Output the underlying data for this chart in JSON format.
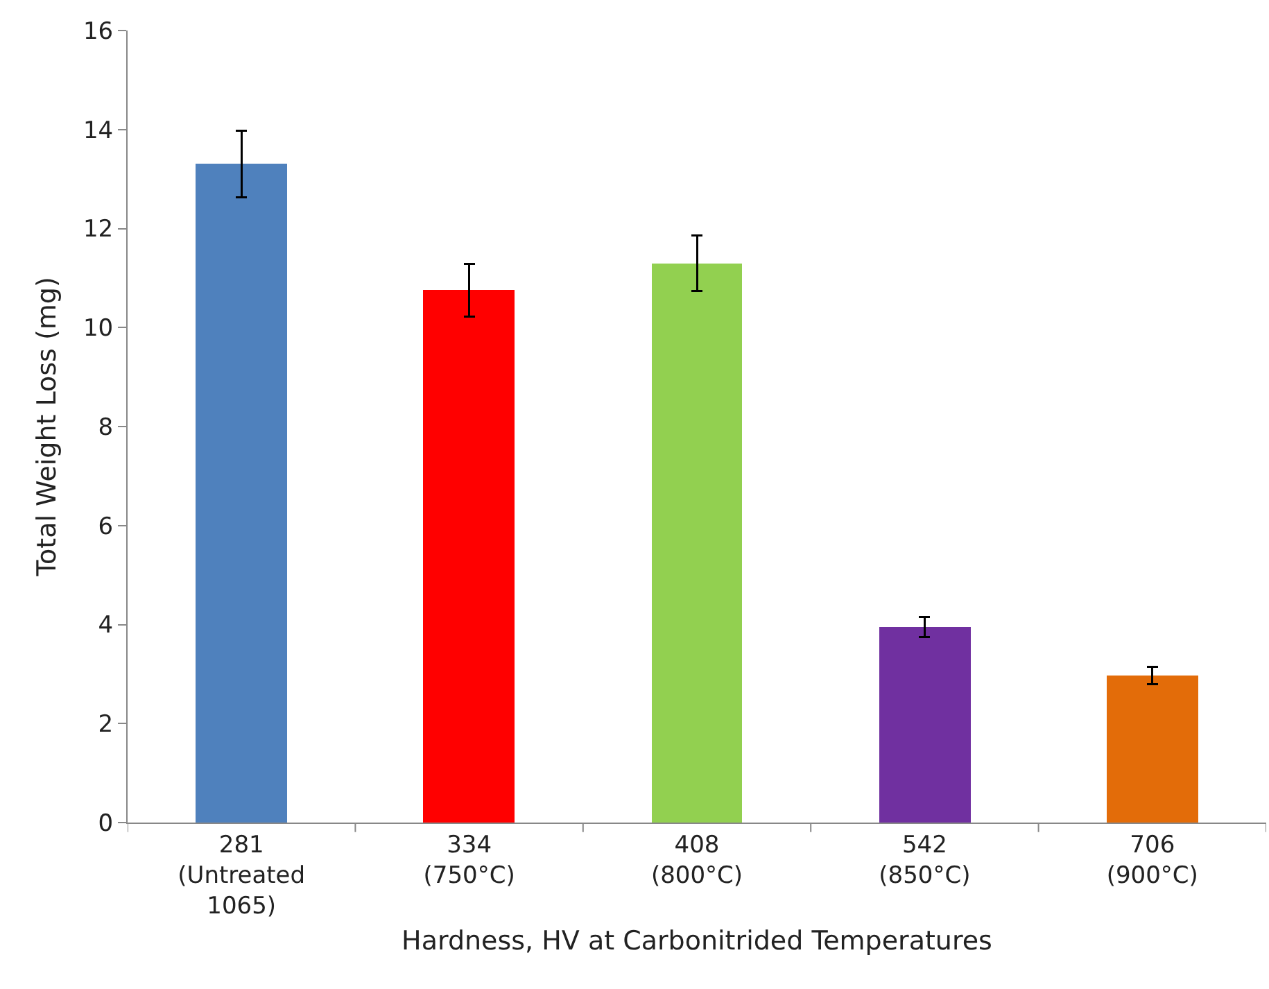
{
  "chart_data": {
    "type": "bar",
    "xlabel": "Hardness, HV at Carbonitrided Temperatures",
    "ylabel": "Total Weight Loss (mg)",
    "categories": [
      "281\n(Untreated\n1065)",
      "334\n(750°C)",
      "408\n(800°C)",
      "542\n(850°C)",
      "706\n(900°C)"
    ],
    "values": [
      13.3,
      10.75,
      11.3,
      3.95,
      2.97
    ],
    "errors": [
      0.67,
      0.53,
      0.56,
      0.2,
      0.17
    ],
    "colors": [
      "#4f81bd",
      "#ff0000",
      "#92d050",
      "#7030a0",
      "#e36c09"
    ],
    "ylim": [
      0,
      16
    ],
    "yticks": [
      0,
      2,
      4,
      6,
      8,
      10,
      12,
      14,
      16
    ],
    "grid": false
  }
}
